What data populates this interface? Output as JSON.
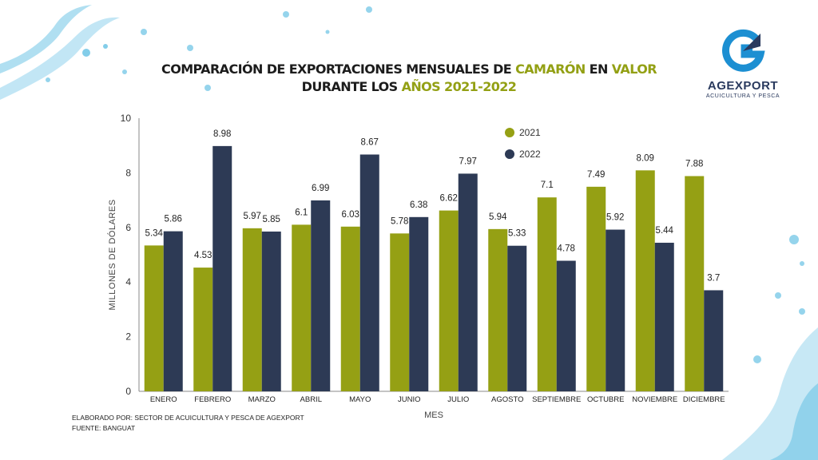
{
  "title": {
    "line1_a": "COMPARACIÓN DE EXPORTACIONES MENSUALES DE ",
    "line1_b": "CAMARÓN",
    "line1_c": " EN ",
    "line1_d": "VALOR",
    "line2_a": "DURANTE LOS ",
    "line2_b": "AÑOS 2021-2022"
  },
  "logo": {
    "name": "AGEXPORT",
    "subtitle": "ACUICULTURA Y PESCA"
  },
  "footer": {
    "credit": "ELABORADO POR: SECTOR DE ACUICULTURA Y PESCA DE AGEXPORT",
    "source": "FUENTE:  BANGUAT"
  },
  "colors": {
    "accent": "#93a014",
    "s2021": "#95a014",
    "s2022": "#2d3a55",
    "splash": "#4fb8df"
  },
  "chart_data": {
    "type": "bar",
    "title": "COMPARACIÓN DE EXPORTACIONES MENSUALES DE CAMARÓN EN VALOR DURANTE LOS AÑOS 2021-2022",
    "xlabel": "MES",
    "ylabel": "MILLONES DE DÓLARES",
    "ylim": [
      0,
      10
    ],
    "yticks": [
      "0",
      "2",
      "4",
      "6",
      "8",
      "10"
    ],
    "grid": false,
    "legend": "top-center",
    "categories": [
      "ENERO",
      "FEBRERO",
      "MARZO",
      "ABRIL",
      "MAYO",
      "JUNIO",
      "JULIO",
      "AGOSTO",
      "SEPTIEMBRE",
      "OCTUBRE",
      "NOVIEMBRE",
      "DICIEMBRE"
    ],
    "series": [
      {
        "name": "2021",
        "color": "#95a014",
        "values": [
          5.34,
          4.53,
          5.97,
          6.1,
          6.03,
          5.78,
          6.62,
          5.94,
          7.1,
          7.49,
          8.09,
          7.88
        ],
        "labels": [
          "5.34",
          "4.53",
          "5.97",
          "6.1",
          "6.03",
          "5.78",
          "6.62",
          "5.94",
          "7.1",
          "7.49",
          "8.09",
          "7.88"
        ]
      },
      {
        "name": "2022",
        "color": "#2d3a55",
        "values": [
          5.86,
          8.98,
          5.85,
          6.99,
          8.67,
          6.38,
          7.97,
          5.33,
          4.78,
          5.92,
          5.44,
          3.7
        ],
        "labels": [
          "5.86",
          "8.98",
          "5.85",
          "6.99",
          "8.67",
          "6.38",
          "7.97",
          "5.33",
          "4.78",
          "5.92",
          "5.44",
          "3.7"
        ]
      }
    ]
  }
}
